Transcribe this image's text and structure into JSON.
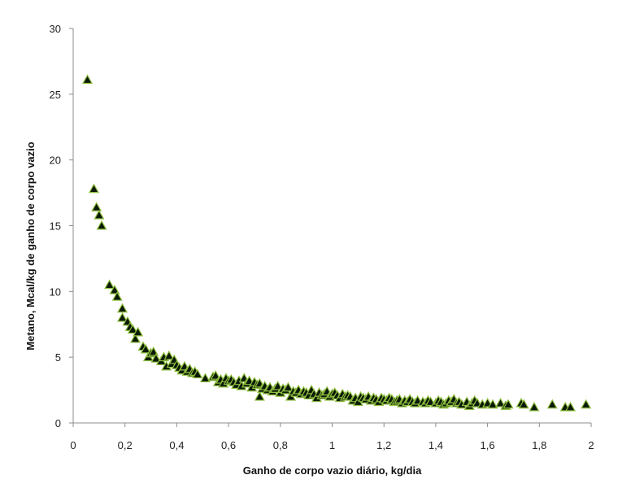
{
  "chart_data": {
    "type": "scatter",
    "xlabel": "Ganho de corpo vazio diário, kg/dia",
    "ylabel": "Metano, Mcal/kg de ganho de corpo vazio",
    "xlim": [
      0,
      2
    ],
    "ylim": [
      0,
      30
    ],
    "x_ticks": [
      "0",
      "0,2",
      "0,4",
      "0,6",
      "0,8",
      "1",
      "1,2",
      "1,4",
      "1,6",
      "1,8",
      "2"
    ],
    "y_ticks": [
      "0",
      "5",
      "10",
      "15",
      "20",
      "25",
      "30"
    ],
    "grid": false,
    "marker": "triangle",
    "marker_fill": "#0b1a08",
    "marker_edge": "#8fbf3f",
    "series": [
      {
        "points": [
          [
            0.055,
            26.1
          ],
          [
            0.08,
            17.8
          ],
          [
            0.09,
            16.4
          ],
          [
            0.1,
            15.8
          ],
          [
            0.11,
            15.0
          ],
          [
            0.14,
            10.5
          ],
          [
            0.16,
            10.1
          ],
          [
            0.17,
            9.6
          ],
          [
            0.19,
            8.7
          ],
          [
            0.19,
            8.0
          ],
          [
            0.21,
            7.7
          ],
          [
            0.22,
            7.3
          ],
          [
            0.23,
            7.1
          ],
          [
            0.24,
            6.4
          ],
          [
            0.25,
            6.9
          ],
          [
            0.27,
            5.8
          ],
          [
            0.28,
            5.6
          ],
          [
            0.29,
            5.0
          ],
          [
            0.3,
            5.3
          ],
          [
            0.31,
            5.4
          ],
          [
            0.32,
            4.9
          ],
          [
            0.34,
            4.7
          ],
          [
            0.35,
            5.0
          ],
          [
            0.36,
            4.3
          ],
          [
            0.37,
            5.1
          ],
          [
            0.38,
            4.5
          ],
          [
            0.39,
            4.8
          ],
          [
            0.4,
            4.4
          ],
          [
            0.41,
            4.2
          ],
          [
            0.42,
            4.0
          ],
          [
            0.43,
            4.3
          ],
          [
            0.44,
            3.9
          ],
          [
            0.45,
            4.1
          ],
          [
            0.46,
            3.8
          ],
          [
            0.47,
            3.9
          ],
          [
            0.48,
            3.7
          ],
          [
            0.51,
            3.4
          ],
          [
            0.54,
            3.5
          ],
          [
            0.55,
            3.6
          ],
          [
            0.56,
            3.1
          ],
          [
            0.57,
            3.3
          ],
          [
            0.58,
            3.0
          ],
          [
            0.59,
            3.4
          ],
          [
            0.6,
            3.2
          ],
          [
            0.61,
            3.3
          ],
          [
            0.62,
            3.1
          ],
          [
            0.63,
            2.9
          ],
          [
            0.64,
            3.2
          ],
          [
            0.65,
            2.8
          ],
          [
            0.66,
            3.4
          ],
          [
            0.67,
            3.0
          ],
          [
            0.68,
            3.2
          ],
          [
            0.69,
            2.7
          ],
          [
            0.7,
            3.1
          ],
          [
            0.71,
            2.9
          ],
          [
            0.72,
            3.0
          ],
          [
            0.72,
            2.0
          ],
          [
            0.73,
            2.6
          ],
          [
            0.74,
            2.8
          ],
          [
            0.75,
            2.5
          ],
          [
            0.76,
            2.7
          ],
          [
            0.77,
            2.4
          ],
          [
            0.78,
            2.6
          ],
          [
            0.79,
            2.8
          ],
          [
            0.8,
            2.3
          ],
          [
            0.81,
            2.6
          ],
          [
            0.82,
            2.5
          ],
          [
            0.83,
            2.7
          ],
          [
            0.84,
            2.0
          ],
          [
            0.85,
            2.4
          ],
          [
            0.86,
            2.3
          ],
          [
            0.87,
            2.5
          ],
          [
            0.88,
            2.2
          ],
          [
            0.89,
            2.4
          ],
          [
            0.9,
            2.3
          ],
          [
            0.91,
            2.1
          ],
          [
            0.92,
            2.5
          ],
          [
            0.93,
            2.2
          ],
          [
            0.94,
            1.9
          ],
          [
            0.95,
            2.3
          ],
          [
            0.96,
            2.1
          ],
          [
            0.97,
            2.2
          ],
          [
            0.98,
            2.4
          ],
          [
            0.99,
            2.0
          ],
          [
            1.0,
            2.2
          ],
          [
            1.01,
            2.3
          ],
          [
            1.02,
            2.1
          ],
          [
            1.03,
            1.9
          ],
          [
            1.04,
            2.2
          ],
          [
            1.05,
            2.0
          ],
          [
            1.06,
            2.1
          ],
          [
            1.07,
            2.0
          ],
          [
            1.08,
            1.7
          ],
          [
            1.09,
            1.9
          ],
          [
            1.1,
            1.6
          ],
          [
            1.11,
            2.0
          ],
          [
            1.12,
            1.9
          ],
          [
            1.13,
            1.8
          ],
          [
            1.14,
            2.0
          ],
          [
            1.15,
            1.7
          ],
          [
            1.16,
            1.9
          ],
          [
            1.17,
            1.8
          ],
          [
            1.18,
            1.6
          ],
          [
            1.19,
            1.9
          ],
          [
            1.2,
            1.8
          ],
          [
            1.21,
            1.7
          ],
          [
            1.22,
            1.9
          ],
          [
            1.23,
            1.8
          ],
          [
            1.24,
            1.6
          ],
          [
            1.25,
            1.7
          ],
          [
            1.26,
            1.8
          ],
          [
            1.27,
            1.5
          ],
          [
            1.28,
            1.7
          ],
          [
            1.29,
            1.6
          ],
          [
            1.3,
            1.8
          ],
          [
            1.31,
            1.6
          ],
          [
            1.32,
            1.5
          ],
          [
            1.33,
            1.7
          ],
          [
            1.35,
            1.6
          ],
          [
            1.36,
            1.5
          ],
          [
            1.37,
            1.7
          ],
          [
            1.38,
            1.6
          ],
          [
            1.4,
            1.5
          ],
          [
            1.41,
            1.7
          ],
          [
            1.42,
            1.6
          ],
          [
            1.43,
            1.4
          ],
          [
            1.44,
            1.5
          ],
          [
            1.45,
            1.7
          ],
          [
            1.46,
            1.6
          ],
          [
            1.47,
            1.8
          ],
          [
            1.48,
            1.5
          ],
          [
            1.49,
            1.6
          ],
          [
            1.5,
            1.4
          ],
          [
            1.52,
            1.6
          ],
          [
            1.53,
            1.3
          ],
          [
            1.54,
            1.5
          ],
          [
            1.55,
            1.7
          ],
          [
            1.56,
            1.5
          ],
          [
            1.58,
            1.4
          ],
          [
            1.6,
            1.5
          ],
          [
            1.62,
            1.4
          ],
          [
            1.65,
            1.5
          ],
          [
            1.67,
            1.3
          ],
          [
            1.68,
            1.4
          ],
          [
            1.73,
            1.5
          ],
          [
            1.74,
            1.4
          ],
          [
            1.78,
            1.2
          ],
          [
            1.85,
            1.4
          ],
          [
            1.9,
            1.2
          ],
          [
            1.92,
            1.2
          ],
          [
            1.98,
            1.4
          ]
        ]
      }
    ]
  }
}
